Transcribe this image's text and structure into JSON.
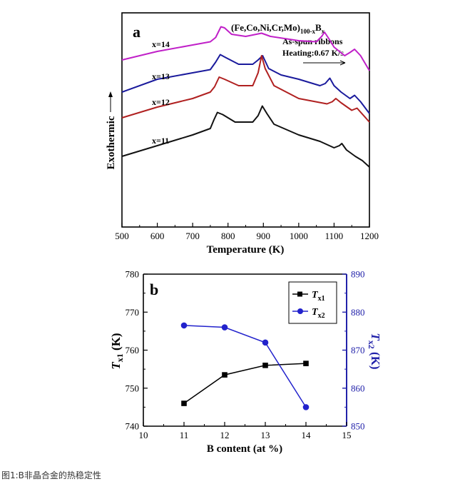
{
  "caption": "图1:B非晶合金的热稳定性",
  "chart_data": [
    {
      "type": "line",
      "panel_label": "a",
      "title_parts": {
        "main": "(Fe,Co,Ni,Cr,Mo)",
        "sub1": "100-x",
        "mid": "B",
        "sub2": "x"
      },
      "annotations": [
        "As-spun ribbons",
        "Heating:0.67 K/s"
      ],
      "xlabel": "Temperature (K)",
      "ylabel": "Exothermic",
      "xlim": [
        500,
        1200
      ],
      "x_ticks": [
        "500",
        "600",
        "700",
        "800",
        "900",
        "1000",
        "1100",
        "1200"
      ],
      "series": [
        {
          "name": "x=14",
          "color": "#c020c8",
          "points": [
            [
              500,
              0.78
            ],
            [
              600,
              0.82
            ],
            [
              700,
              0.85
            ],
            [
              750,
              0.865
            ],
            [
              765,
              0.885
            ],
            [
              780,
              0.935
            ],
            [
              790,
              0.93
            ],
            [
              810,
              0.9
            ],
            [
              850,
              0.89
            ],
            [
              880,
              0.9
            ],
            [
              895,
              0.905
            ],
            [
              920,
              0.89
            ],
            [
              1000,
              0.87
            ],
            [
              1050,
              0.865
            ],
            [
              1065,
              0.89
            ],
            [
              1073,
              0.91
            ],
            [
              1085,
              0.88
            ],
            [
              1100,
              0.84
            ],
            [
              1130,
              0.8
            ],
            [
              1145,
              0.815
            ],
            [
              1158,
              0.83
            ],
            [
              1175,
              0.8
            ],
            [
              1200,
              0.73
            ]
          ]
        },
        {
          "name": "x=13",
          "color": "#1a1a9c",
          "points": [
            [
              500,
              0.63
            ],
            [
              600,
              0.69
            ],
            [
              700,
              0.72
            ],
            [
              750,
              0.735
            ],
            [
              765,
              0.77
            ],
            [
              778,
              0.805
            ],
            [
              795,
              0.79
            ],
            [
              830,
              0.76
            ],
            [
              870,
              0.76
            ],
            [
              885,
              0.78
            ],
            [
              898,
              0.8
            ],
            [
              915,
              0.74
            ],
            [
              950,
              0.71
            ],
            [
              1000,
              0.69
            ],
            [
              1060,
              0.66
            ],
            [
              1075,
              0.67
            ],
            [
              1088,
              0.695
            ],
            [
              1100,
              0.66
            ],
            [
              1120,
              0.63
            ],
            [
              1145,
              0.6
            ],
            [
              1158,
              0.615
            ],
            [
              1175,
              0.585
            ],
            [
              1200,
              0.53
            ]
          ]
        },
        {
          "name": "x=12",
          "color": "#b02020",
          "points": [
            [
              500,
              0.51
            ],
            [
              600,
              0.56
            ],
            [
              700,
              0.6
            ],
            [
              750,
              0.63
            ],
            [
              762,
              0.655
            ],
            [
              775,
              0.7
            ],
            [
              790,
              0.69
            ],
            [
              830,
              0.66
            ],
            [
              870,
              0.66
            ],
            [
              885,
              0.72
            ],
            [
              895,
              0.8
            ],
            [
              905,
              0.74
            ],
            [
              930,
              0.66
            ],
            [
              1000,
              0.6
            ],
            [
              1080,
              0.575
            ],
            [
              1095,
              0.585
            ],
            [
              1105,
              0.6
            ],
            [
              1120,
              0.58
            ],
            [
              1150,
              0.545
            ],
            [
              1165,
              0.555
            ],
            [
              1200,
              0.49
            ]
          ]
        },
        {
          "name": "x=11",
          "color": "#111111",
          "points": [
            [
              500,
              0.33
            ],
            [
              600,
              0.38
            ],
            [
              700,
              0.43
            ],
            [
              750,
              0.46
            ],
            [
              760,
              0.5
            ],
            [
              770,
              0.535
            ],
            [
              785,
              0.525
            ],
            [
              820,
              0.49
            ],
            [
              870,
              0.49
            ],
            [
              885,
              0.52
            ],
            [
              897,
              0.565
            ],
            [
              910,
              0.53
            ],
            [
              930,
              0.48
            ],
            [
              1000,
              0.43
            ],
            [
              1060,
              0.4
            ],
            [
              1100,
              0.37
            ],
            [
              1115,
              0.38
            ],
            [
              1122,
              0.39
            ],
            [
              1135,
              0.36
            ],
            [
              1160,
              0.33
            ],
            [
              1180,
              0.31
            ],
            [
              1200,
              0.28
            ]
          ]
        }
      ],
      "series_labels": [
        "x=14",
        "x=13",
        "x=12",
        "x=11"
      ]
    },
    {
      "type": "line",
      "panel_label": "b",
      "xlabel": "B content (at %)",
      "ylabel_left": "T_x1 (K)",
      "ylabel_right": "T_x2 (K)",
      "xlim": [
        10,
        15
      ],
      "ylim_left": [
        740,
        780
      ],
      "ylim_right": [
        850,
        890
      ],
      "x_ticks": [
        "10",
        "11",
        "12",
        "13",
        "14",
        "15"
      ],
      "y_ticks_left": [
        "740",
        "750",
        "760",
        "770",
        "780"
      ],
      "y_ticks_right": [
        "850",
        "860",
        "870",
        "880",
        "890"
      ],
      "categories": [
        11,
        12,
        13,
        14
      ],
      "series": [
        {
          "name": "T_x1",
          "axis": "left",
          "color": "#000000",
          "marker": "square",
          "values": [
            746,
            753.5,
            756,
            756.5
          ]
        },
        {
          "name": "T_x2",
          "axis": "right",
          "color": "#2222cc",
          "marker": "circle",
          "values": [
            876.5,
            876,
            872,
            855
          ]
        }
      ],
      "left_axis_color": "#000000",
      "right_axis_color": "#2222aa"
    }
  ]
}
